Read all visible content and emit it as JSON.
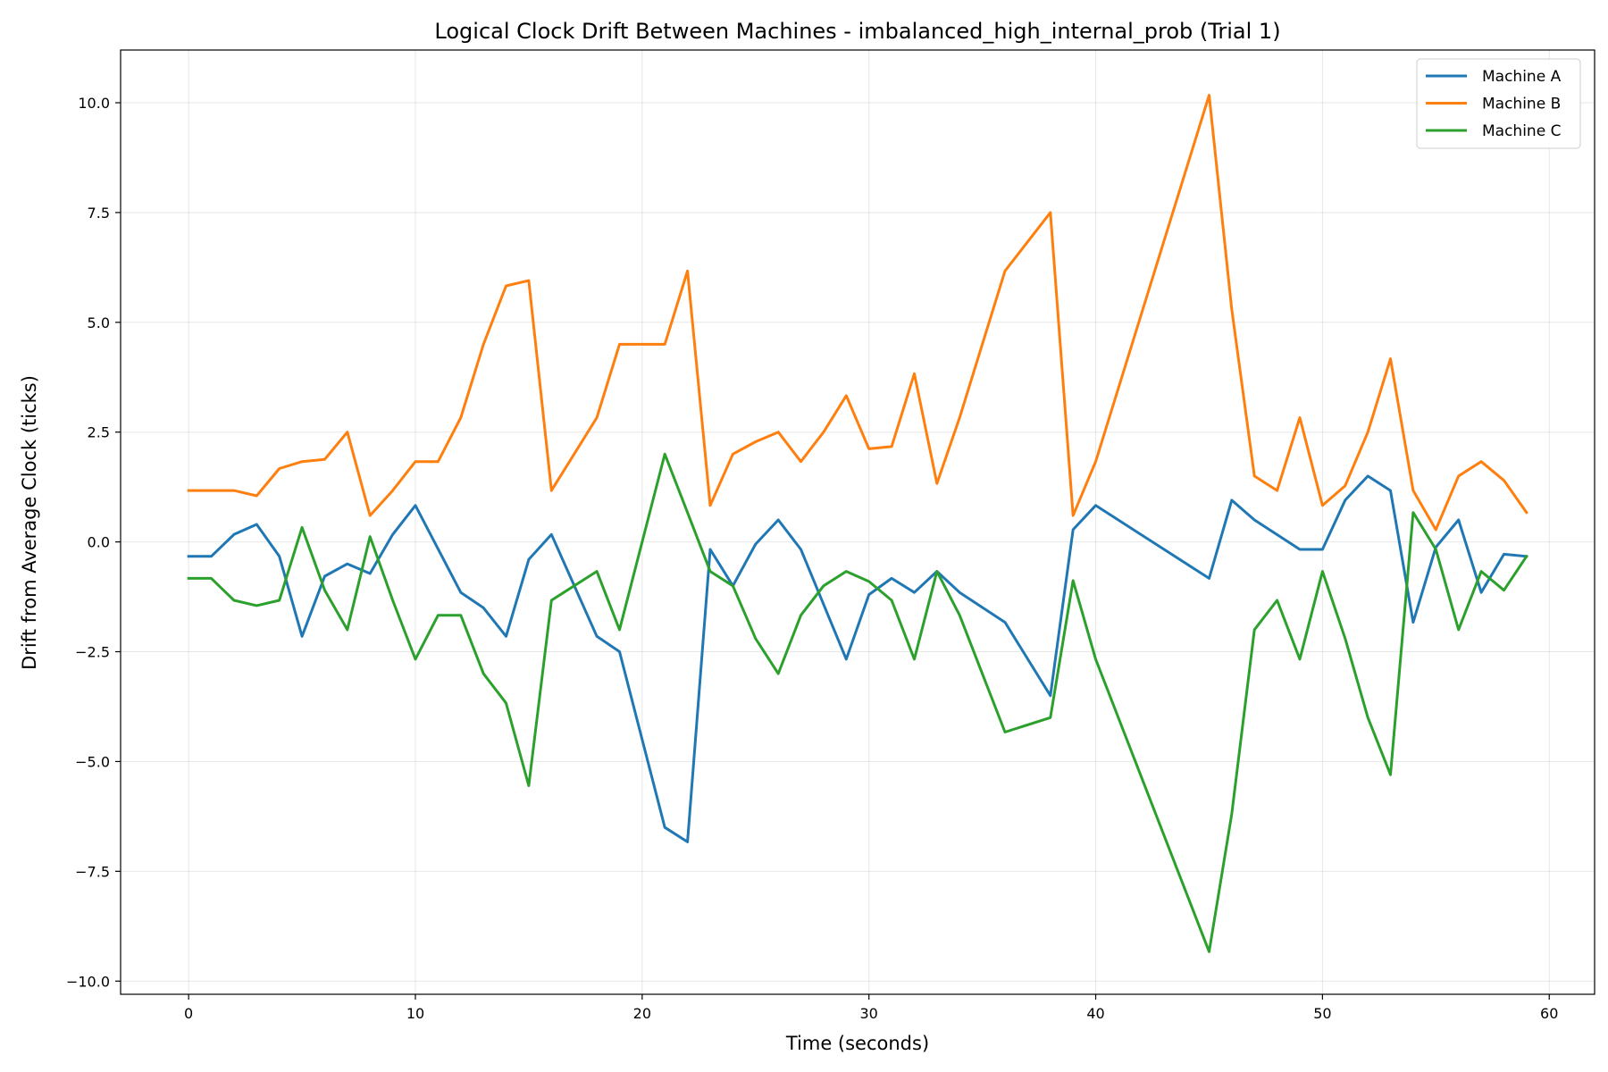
{
  "chart_data": {
    "type": "line",
    "title": "Logical Clock Drift Between Machines - imbalanced_high_internal_prob (Trial 1)",
    "xlabel": "Time (seconds)",
    "ylabel": "Drift from Average Clock (ticks)",
    "xlim": [
      -3,
      62
    ],
    "ylim": [
      -10.3,
      11.2
    ],
    "xticks": [
      0,
      10,
      20,
      30,
      40,
      50,
      60
    ],
    "yticks": [
      -10.0,
      -7.5,
      -5.0,
      -2.5,
      0.0,
      2.5,
      5.0,
      7.5,
      10.0
    ],
    "ytick_labels": [
      "−10.0",
      "−7.5",
      "−5.0",
      "−2.5",
      "0.0",
      "2.5",
      "5.0",
      "7.5",
      "10.0"
    ],
    "grid": true,
    "legend_position": "top-right",
    "series": [
      {
        "name": "Machine A",
        "color": "#1f77b4",
        "points": [
          [
            0,
            -0.33
          ],
          [
            1,
            -0.33
          ],
          [
            2,
            0.17
          ],
          [
            3,
            0.4
          ],
          [
            4,
            -0.33
          ],
          [
            5,
            -2.15
          ],
          [
            6,
            -0.78
          ],
          [
            7,
            -0.5
          ],
          [
            8,
            -0.72
          ],
          [
            9,
            0.17
          ],
          [
            10,
            0.83
          ],
          [
            12,
            -1.15
          ],
          [
            13,
            -1.5
          ],
          [
            14,
            -2.15
          ],
          [
            15,
            -0.4
          ],
          [
            16,
            0.17
          ],
          [
            18,
            -2.15
          ],
          [
            19,
            -2.5
          ],
          [
            21,
            -6.5
          ],
          [
            22,
            -6.83
          ],
          [
            23,
            -0.17
          ],
          [
            24,
            -1.0
          ],
          [
            25,
            -0.05
          ],
          [
            26,
            0.5
          ],
          [
            27,
            -0.17
          ],
          [
            29,
            -2.67
          ],
          [
            30,
            -1.2
          ],
          [
            31,
            -0.83
          ],
          [
            32,
            -1.15
          ],
          [
            33,
            -0.67
          ],
          [
            34,
            -1.15
          ],
          [
            36,
            -1.83
          ],
          [
            38,
            -3.5
          ],
          [
            39,
            0.28
          ],
          [
            40,
            0.83
          ],
          [
            45,
            -0.83
          ],
          [
            46,
            0.95
          ],
          [
            47,
            0.5
          ],
          [
            49,
            -0.17
          ],
          [
            50,
            -0.17
          ],
          [
            51,
            0.95
          ],
          [
            52,
            1.5
          ],
          [
            53,
            1.17
          ],
          [
            54,
            -1.83
          ],
          [
            55,
            -0.12
          ],
          [
            56,
            0.5
          ],
          [
            57,
            -1.15
          ],
          [
            58,
            -0.28
          ],
          [
            59,
            -0.33
          ]
        ]
      },
      {
        "name": "Machine B",
        "color": "#ff7f0e",
        "points": [
          [
            0,
            1.17
          ],
          [
            1,
            1.17
          ],
          [
            2,
            1.17
          ],
          [
            3,
            1.05
          ],
          [
            4,
            1.67
          ],
          [
            5,
            1.83
          ],
          [
            6,
            1.88
          ],
          [
            7,
            2.5
          ],
          [
            8,
            0.6
          ],
          [
            9,
            1.17
          ],
          [
            10,
            1.83
          ],
          [
            11,
            1.83
          ],
          [
            12,
            2.83
          ],
          [
            13,
            4.5
          ],
          [
            14,
            5.83
          ],
          [
            15,
            5.95
          ],
          [
            16,
            1.17
          ],
          [
            18,
            2.83
          ],
          [
            19,
            4.5
          ],
          [
            21,
            4.5
          ],
          [
            22,
            6.17
          ],
          [
            23,
            0.83
          ],
          [
            24,
            2.0
          ],
          [
            25,
            2.28
          ],
          [
            26,
            2.5
          ],
          [
            27,
            1.83
          ],
          [
            28,
            2.5
          ],
          [
            29,
            3.33
          ],
          [
            30,
            2.12
          ],
          [
            31,
            2.17
          ],
          [
            32,
            3.83
          ],
          [
            33,
            1.33
          ],
          [
            34,
            2.83
          ],
          [
            36,
            6.17
          ],
          [
            38,
            7.5
          ],
          [
            39,
            0.6
          ],
          [
            40,
            1.83
          ],
          [
            45,
            10.17
          ],
          [
            46,
            5.3
          ],
          [
            47,
            1.5
          ],
          [
            48,
            1.17
          ],
          [
            49,
            2.83
          ],
          [
            50,
            0.83
          ],
          [
            51,
            1.28
          ],
          [
            52,
            2.5
          ],
          [
            53,
            4.17
          ],
          [
            54,
            1.17
          ],
          [
            55,
            0.28
          ],
          [
            56,
            1.5
          ],
          [
            57,
            1.83
          ],
          [
            58,
            1.4
          ],
          [
            59,
            0.67
          ]
        ]
      },
      {
        "name": "Machine C",
        "color": "#2ca02c",
        "points": [
          [
            0,
            -0.83
          ],
          [
            1,
            -0.83
          ],
          [
            2,
            -1.33
          ],
          [
            3,
            -1.45
          ],
          [
            4,
            -1.33
          ],
          [
            5,
            0.33
          ],
          [
            6,
            -1.1
          ],
          [
            7,
            -2.0
          ],
          [
            8,
            0.12
          ],
          [
            9,
            -1.33
          ],
          [
            10,
            -2.67
          ],
          [
            11,
            -1.67
          ],
          [
            12,
            -1.67
          ],
          [
            13,
            -3.0
          ],
          [
            14,
            -3.67
          ],
          [
            15,
            -5.55
          ],
          [
            16,
            -1.33
          ],
          [
            18,
            -0.67
          ],
          [
            19,
            -2.0
          ],
          [
            21,
            2.0
          ],
          [
            22,
            0.67
          ],
          [
            23,
            -0.67
          ],
          [
            24,
            -1.0
          ],
          [
            25,
            -2.2
          ],
          [
            26,
            -3.0
          ],
          [
            27,
            -1.67
          ],
          [
            28,
            -1.0
          ],
          [
            29,
            -0.67
          ],
          [
            30,
            -0.9
          ],
          [
            31,
            -1.33
          ],
          [
            32,
            -2.67
          ],
          [
            33,
            -0.67
          ],
          [
            34,
            -1.67
          ],
          [
            36,
            -4.33
          ],
          [
            38,
            -4.0
          ],
          [
            39,
            -0.88
          ],
          [
            40,
            -2.67
          ],
          [
            45,
            -9.33
          ],
          [
            46,
            -6.2
          ],
          [
            47,
            -2.0
          ],
          [
            48,
            -1.33
          ],
          [
            49,
            -2.67
          ],
          [
            50,
            -0.67
          ],
          [
            51,
            -2.2
          ],
          [
            52,
            -4.0
          ],
          [
            53,
            -5.3
          ],
          [
            54,
            0.67
          ],
          [
            55,
            -0.17
          ],
          [
            56,
            -2.0
          ],
          [
            57,
            -0.67
          ],
          [
            58,
            -1.1
          ],
          [
            59,
            -0.33
          ]
        ]
      }
    ]
  }
}
